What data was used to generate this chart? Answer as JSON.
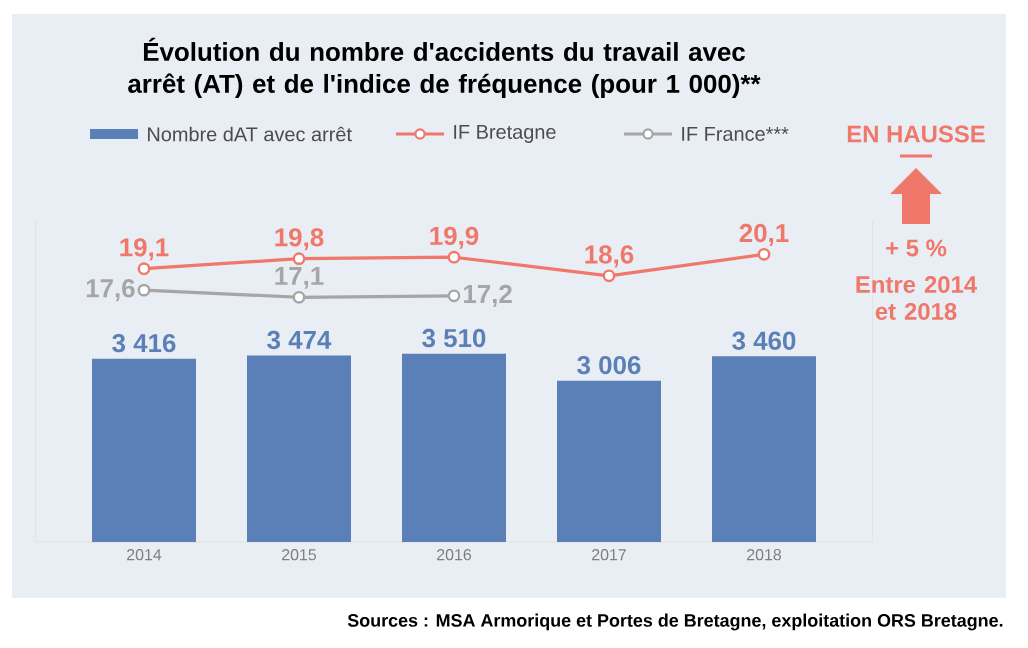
{
  "chart_data": {
    "type": "bar",
    "title": "Évolution du nombre d'accidents du travail avec arrêt (AT) et de l'indice de fréquence (pour 1 000)**",
    "categories": [
      "2014",
      "2015",
      "2016",
      "2017",
      "2018"
    ],
    "series": [
      {
        "name": "Nombre dAT avec arrêt",
        "color": "#5b80b8",
        "values": [
          3416,
          3474,
          3510,
          3006,
          3460
        ],
        "value_labels": [
          "3 416",
          "3 474",
          "3 510",
          "3 006",
          "3 460"
        ]
      },
      {
        "name": "IF Bretagne",
        "type": "line",
        "axis": "y2",
        "color": "#f0786a",
        "values": [
          19.1,
          19.8,
          19.9,
          18.6,
          20.1
        ],
        "value_labels": [
          "19,1",
          "19,8",
          "19,9",
          "18,6",
          "20,1"
        ]
      },
      {
        "name": "IF France***",
        "type": "line",
        "axis": "y2",
        "color": "#a6a6a6",
        "values": [
          17.6,
          17.1,
          17.2,
          null,
          null
        ],
        "value_labels": [
          "17,6",
          "17,1",
          "17,2",
          null,
          null
        ]
      }
    ],
    "ylim": [
      0,
      6000
    ],
    "y2lim": [
      0,
      22.5
    ],
    "tick_labels": "x",
    "marker": "circle",
    "legend": "top",
    "annotations": [
      "EN HAUSSE",
      "+ 5 %",
      "Entre 2014 et 2018",
      "Sources : MSA Armorique et Portes de Bretagne, exploitation ORS Bretagne."
    ]
  }
}
